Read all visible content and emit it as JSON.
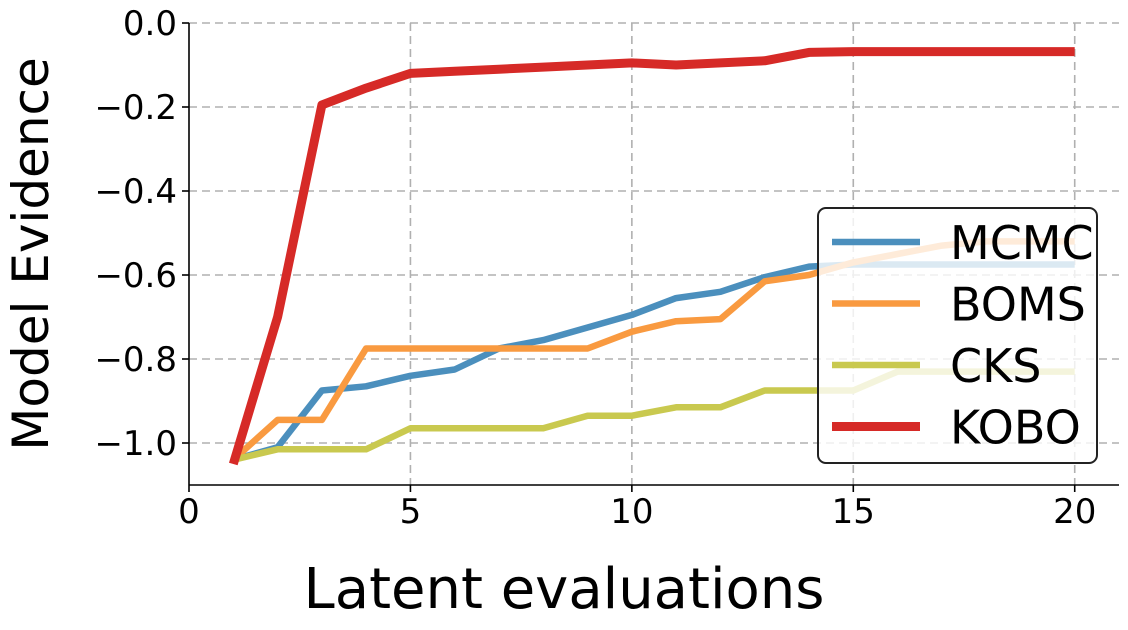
{
  "chart_data": {
    "type": "line",
    "title": "",
    "xlabel": "Latent evaluations",
    "ylabel": "Model Evidence",
    "xlim": [
      0,
      21
    ],
    "ylim": [
      -1.1,
      0.0
    ],
    "xticks": [
      0,
      5,
      10,
      15,
      20
    ],
    "xtick_labels": [
      "0",
      "5",
      "10",
      "15",
      "20"
    ],
    "yticks": [
      0.0,
      -0.2,
      -0.4,
      -0.6,
      -0.8,
      -1.0
    ],
    "ytick_labels": [
      "0.0",
      "−0.2",
      "−0.4",
      "−0.6",
      "−0.8",
      "−1.0"
    ],
    "grid": true,
    "legend_position": "lower-right",
    "x": [
      1,
      2,
      3,
      4,
      5,
      6,
      7,
      8,
      9,
      10,
      11,
      12,
      13,
      14,
      15,
      16,
      17,
      18,
      19,
      20
    ],
    "series": [
      {
        "name": "MCMC",
        "color": "#4b8fbd",
        "values": [
          -1.04,
          -1.01,
          -0.875,
          -0.865,
          -0.84,
          -0.825,
          -0.775,
          -0.755,
          -0.725,
          -0.695,
          -0.655,
          -0.64,
          -0.605,
          -0.58,
          -0.575,
          -0.575,
          -0.575,
          -0.575,
          -0.575,
          -0.575
        ]
      },
      {
        "name": "BOMS",
        "color": "#f99a40",
        "values": [
          -1.04,
          -0.945,
          -0.945,
          -0.775,
          -0.775,
          -0.775,
          -0.775,
          -0.775,
          -0.775,
          -0.735,
          -0.71,
          -0.705,
          -0.615,
          -0.6,
          -0.57,
          -0.55,
          -0.53,
          -0.52,
          -0.52,
          -0.52
        ]
      },
      {
        "name": "CKS",
        "color": "#c9c94f",
        "values": [
          -1.04,
          -1.015,
          -1.015,
          -1.015,
          -0.965,
          -0.965,
          -0.965,
          -0.965,
          -0.935,
          -0.935,
          -0.915,
          -0.915,
          -0.875,
          -0.875,
          -0.875,
          -0.83,
          -0.83,
          -0.83,
          -0.83,
          -0.83
        ]
      },
      {
        "name": "KOBO",
        "color": "#d62a27",
        "values": [
          -1.05,
          -0.7,
          -0.195,
          -0.155,
          -0.12,
          -0.115,
          -0.11,
          -0.105,
          -0.1,
          -0.095,
          -0.1,
          -0.095,
          -0.09,
          -0.07,
          -0.068,
          -0.068,
          -0.068,
          -0.068,
          -0.068,
          -0.068
        ]
      }
    ]
  }
}
